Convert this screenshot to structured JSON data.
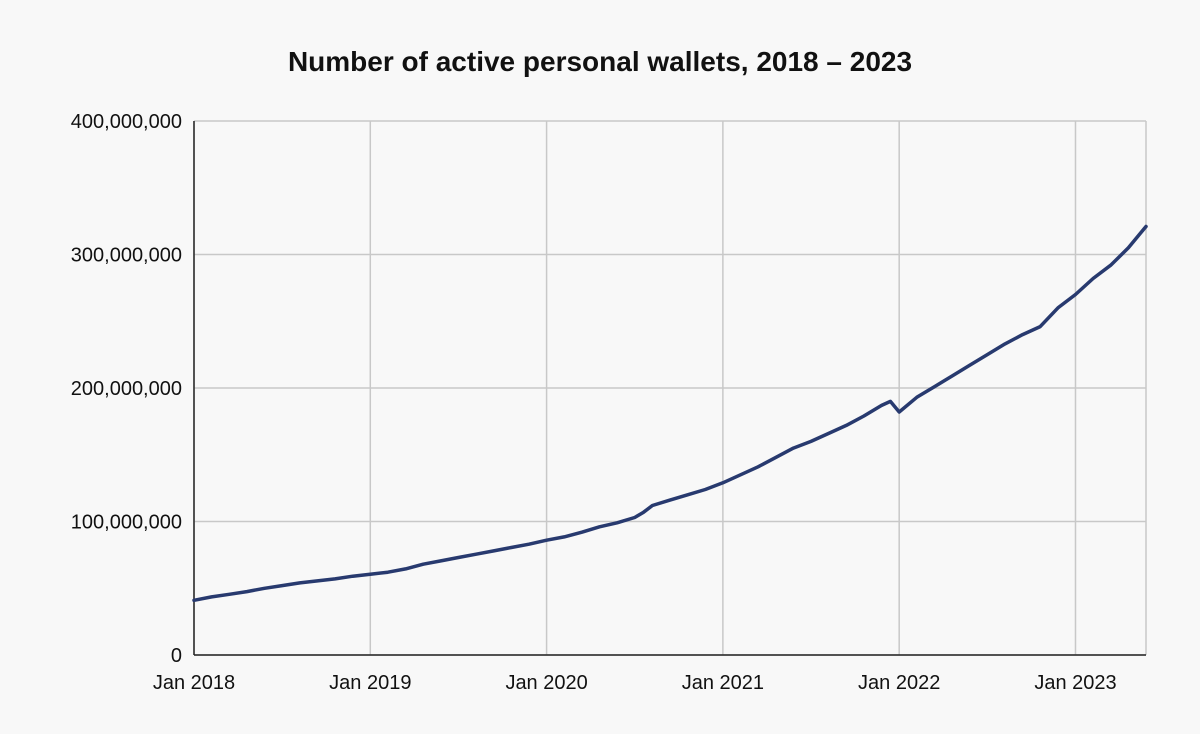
{
  "chart_data": {
    "type": "line",
    "title": "Number of active personal wallets, 2018 – 2023",
    "xlabel": "",
    "ylabel": "",
    "ylim": [
      0,
      400000000
    ],
    "y_ticks": [
      0,
      100000000,
      200000000,
      300000000,
      400000000
    ],
    "y_tick_labels": [
      "0",
      "100,000,000",
      "200,000,000",
      "300,000,000",
      "400,000,000"
    ],
    "x_tick_labels": [
      "Jan 2018",
      "Jan 2019",
      "Jan 2020",
      "Jan 2021",
      "Jan 2022",
      "Jan 2023"
    ],
    "x_tick_years": [
      2018,
      2019,
      2020,
      2021,
      2022,
      2023
    ],
    "xlim": [
      2018.0,
      2023.4
    ],
    "grid": true,
    "series": [
      {
        "name": "Active personal wallets",
        "color": "#283a6f",
        "x": [
          2018.0,
          2018.1,
          2018.2,
          2018.3,
          2018.4,
          2018.5,
          2018.6,
          2018.7,
          2018.8,
          2018.9,
          2019.0,
          2019.1,
          2019.2,
          2019.3,
          2019.4,
          2019.5,
          2019.6,
          2019.7,
          2019.8,
          2019.9,
          2020.0,
          2020.1,
          2020.2,
          2020.3,
          2020.4,
          2020.5,
          2020.55,
          2020.6,
          2020.7,
          2020.8,
          2020.9,
          2021.0,
          2021.1,
          2021.2,
          2021.3,
          2021.4,
          2021.5,
          2021.6,
          2021.7,
          2021.8,
          2021.9,
          2021.95,
          2022.0,
          2022.1,
          2022.2,
          2022.3,
          2022.4,
          2022.5,
          2022.6,
          2022.7,
          2022.8,
          2022.9,
          2023.0,
          2023.1,
          2023.2,
          2023.3,
          2023.4
        ],
        "values": [
          41000000,
          43500000,
          45500000,
          47500000,
          50000000,
          52000000,
          54000000,
          55500000,
          57000000,
          59000000,
          60500000,
          62000000,
          64500000,
          68000000,
          70500000,
          73000000,
          75500000,
          78000000,
          80500000,
          83000000,
          86000000,
          88500000,
          92000000,
          96000000,
          99000000,
          103000000,
          107000000,
          112000000,
          116000000,
          120000000,
          124000000,
          129000000,
          135000000,
          141000000,
          148000000,
          155000000,
          160000000,
          166000000,
          172000000,
          179000000,
          187000000,
          190000000,
          182000000,
          193000000,
          201000000,
          209000000,
          217000000,
          225000000,
          233000000,
          240000000,
          246000000,
          260000000,
          270000000,
          282000000,
          292000000,
          305000000,
          321000000
        ]
      }
    ]
  }
}
